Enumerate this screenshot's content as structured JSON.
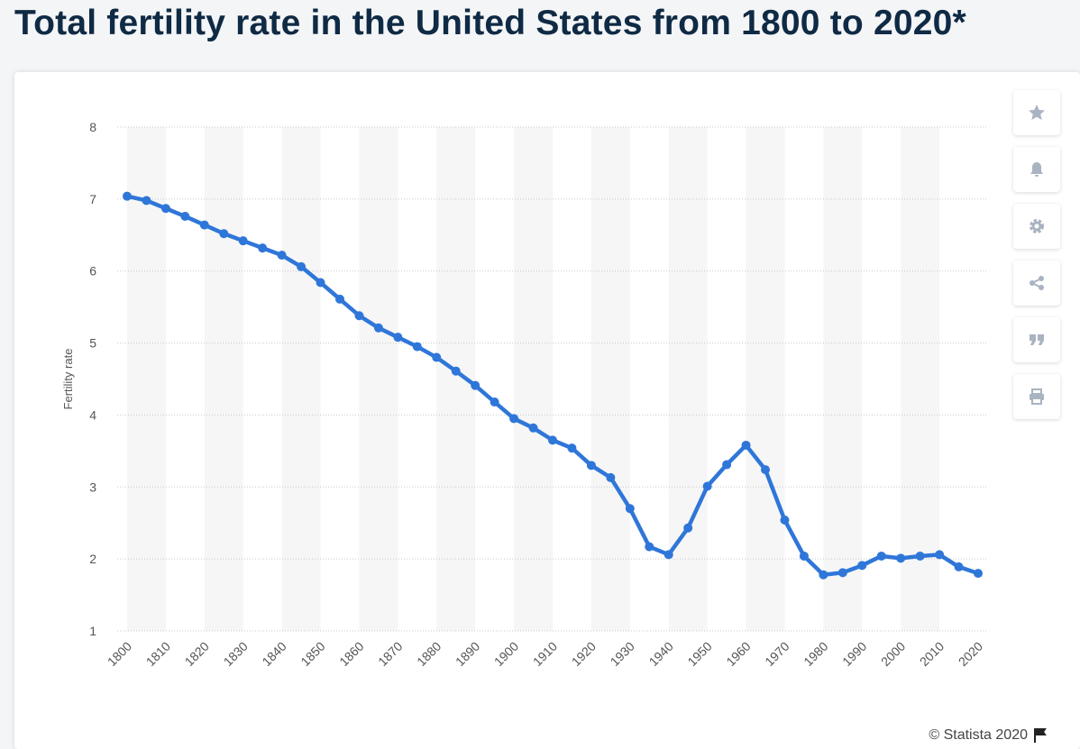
{
  "chart_data": {
    "type": "line",
    "title": "Total fertility rate in the United States from 1800 to 2020*",
    "y_label": "Fertility rate",
    "source": "© Statista 2020",
    "x": [
      1800,
      1805,
      1810,
      1815,
      1820,
      1825,
      1830,
      1835,
      1840,
      1845,
      1850,
      1855,
      1860,
      1865,
      1870,
      1875,
      1880,
      1885,
      1890,
      1895,
      1900,
      1905,
      1910,
      1915,
      1920,
      1925,
      1930,
      1935,
      1940,
      1945,
      1950,
      1955,
      1960,
      1965,
      1970,
      1975,
      1980,
      1985,
      1990,
      1995,
      2000,
      2005,
      2010,
      2015,
      2020
    ],
    "series": [
      {
        "name": "Fertility rate",
        "color": "#2f76d9",
        "values": [
          7.04,
          6.98,
          6.87,
          6.76,
          6.64,
          6.52,
          6.42,
          6.32,
          6.22,
          6.06,
          5.84,
          5.61,
          5.38,
          5.21,
          5.08,
          4.95,
          4.8,
          4.61,
          4.41,
          4.18,
          3.95,
          3.82,
          3.65,
          3.54,
          3.3,
          3.13,
          2.7,
          2.17,
          2.06,
          2.43,
          3.01,
          3.31,
          3.58,
          3.24,
          2.54,
          2.04,
          1.78,
          1.81,
          1.91,
          2.04,
          2.01,
          2.04,
          2.06,
          1.89,
          1.8
        ]
      }
    ],
    "xlim": [
      1800,
      2020
    ],
    "xticks": [
      1800,
      1810,
      1820,
      1830,
      1840,
      1850,
      1860,
      1870,
      1880,
      1890,
      1900,
      1910,
      1920,
      1930,
      1940,
      1950,
      1960,
      1970,
      1980,
      1990,
      2000,
      2010,
      2020
    ],
    "ylim": [
      1,
      8
    ],
    "yticks": [
      1,
      2,
      3,
      4,
      5,
      6,
      7,
      8
    ],
    "grid": true
  }
}
